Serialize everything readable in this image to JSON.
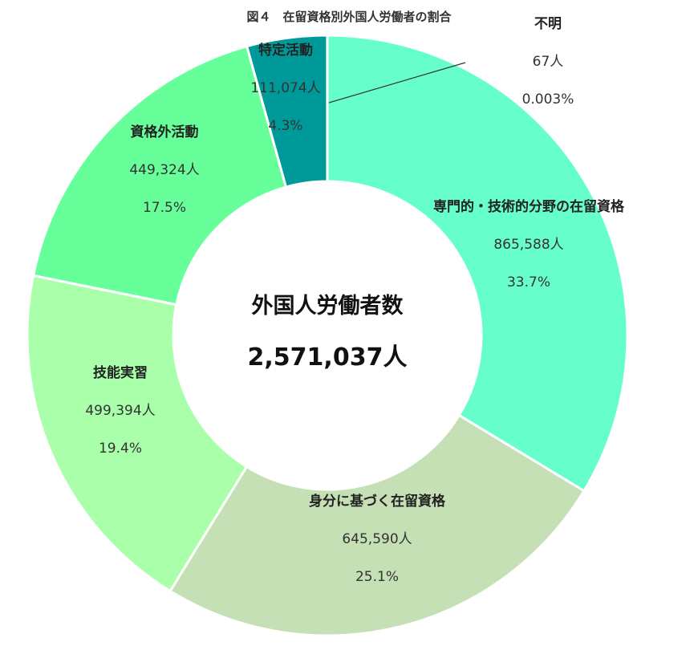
{
  "chart_data": {
    "type": "pie",
    "title": "図４　在留資格別外国人労働者の割合",
    "center_label": "外国人労働者数",
    "center_value": "2,571,037人",
    "slices": [
      {
        "name": "専門的・技術的分野の在留資格",
        "count": "865,588人",
        "percent": "33.7%",
        "value": 865588,
        "color": "#66ffcc"
      },
      {
        "name": "身分に基づく在留資格",
        "count": "645,590人",
        "percent": "25.1%",
        "value": 645590,
        "color": "#c4e0b4"
      },
      {
        "name": "技能実習",
        "count": "499,394人",
        "percent": "19.4%",
        "value": 499394,
        "color": "#aaffaa"
      },
      {
        "name": "資格外活動",
        "count": "449,324人",
        "percent": "17.5%",
        "value": 449324,
        "color": "#66ff99"
      },
      {
        "name": "特定活動",
        "count": "111,074人",
        "percent": "4.3%",
        "value": 111074,
        "color": "#009999"
      },
      {
        "name": "不明",
        "count": "67人",
        "percent": "0.003%",
        "value": 67,
        "color": "#006666"
      }
    ]
  }
}
